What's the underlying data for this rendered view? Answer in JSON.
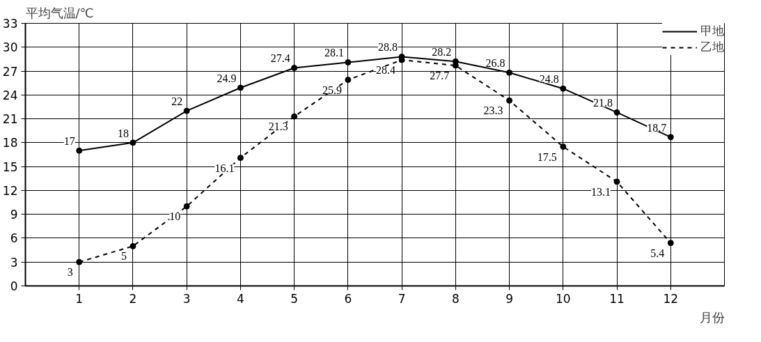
{
  "chart_data": {
    "type": "line",
    "xlabel": "月份",
    "ylabel": "平均气温/℃",
    "x": [
      1,
      2,
      3,
      4,
      5,
      6,
      7,
      8,
      9,
      10,
      11,
      12
    ],
    "xlim": [
      0,
      13
    ],
    "xticks": [
      1,
      2,
      3,
      4,
      5,
      6,
      7,
      8,
      9,
      10,
      11,
      12
    ],
    "ylim": [
      0,
      33
    ],
    "yticks": [
      0,
      3,
      6,
      9,
      12,
      15,
      18,
      21,
      24,
      27,
      30,
      33
    ],
    "series": [
      {
        "name": "甲地",
        "color": "#000000",
        "line_style": "solid",
        "values": [
          17,
          18,
          22,
          24.9,
          27.4,
          28.1,
          28.8,
          28.2,
          26.8,
          24.8,
          21.8,
          18.7
        ]
      },
      {
        "name": "乙地",
        "color": "#000000",
        "line_style": "dashed",
        "values": [
          3,
          5,
          10,
          16.1,
          21.3,
          25.9,
          28.4,
          27.7,
          23.3,
          17.5,
          13.1,
          5.4
        ]
      }
    ],
    "marker": "circle",
    "grid": true,
    "legend": "top right",
    "data_labels": true
  }
}
